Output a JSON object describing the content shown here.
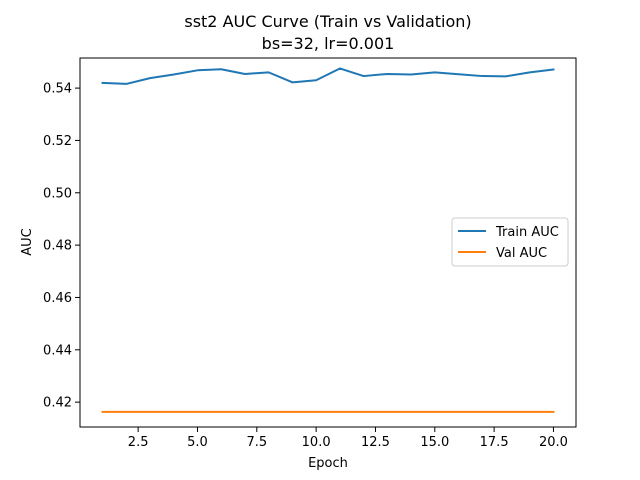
{
  "chart_data": {
    "type": "line",
    "title": "sst2 AUC Curve (Train vs Validation)",
    "subtitle": "bs=32, lr=0.001",
    "xlabel": "Epoch",
    "ylabel": "AUC",
    "xlim": [
      0.05,
      20.95
    ],
    "ylim": [
      0.4105,
      0.5515
    ],
    "xticks": [
      2.5,
      5.0,
      7.5,
      10.0,
      12.5,
      15.0,
      17.5,
      20.0
    ],
    "xtick_labels": [
      "2.5",
      "5.0",
      "7.5",
      "10.0",
      "12.5",
      "15.0",
      "17.5",
      "20.0"
    ],
    "yticks": [
      0.42,
      0.44,
      0.46,
      0.48,
      0.5,
      0.52,
      0.54
    ],
    "ytick_labels": [
      "0.42",
      "0.44",
      "0.46",
      "0.48",
      "0.50",
      "0.52",
      "0.54"
    ],
    "grid": false,
    "legend_position": "center-right",
    "x": [
      1,
      2,
      3,
      4,
      5,
      6,
      7,
      8,
      9,
      10,
      11,
      12,
      13,
      14,
      15,
      16,
      17,
      18,
      19,
      20
    ],
    "series": [
      {
        "name": "Train AUC",
        "color": "#1f77b4",
        "values": [
          0.542,
          0.5416,
          0.5438,
          0.5452,
          0.5468,
          0.5472,
          0.5454,
          0.546,
          0.5422,
          0.543,
          0.5475,
          0.5446,
          0.5454,
          0.5452,
          0.546,
          0.5453,
          0.5446,
          0.5445,
          0.546,
          0.5471
        ]
      },
      {
        "name": "Val AUC",
        "color": "#ff7f0e",
        "values": [
          0.4163,
          0.4163,
          0.4163,
          0.4163,
          0.4163,
          0.4163,
          0.4163,
          0.4163,
          0.4163,
          0.4163,
          0.4163,
          0.4163,
          0.4163,
          0.4163,
          0.4163,
          0.4163,
          0.4163,
          0.4163,
          0.4163,
          0.4163
        ]
      }
    ]
  }
}
